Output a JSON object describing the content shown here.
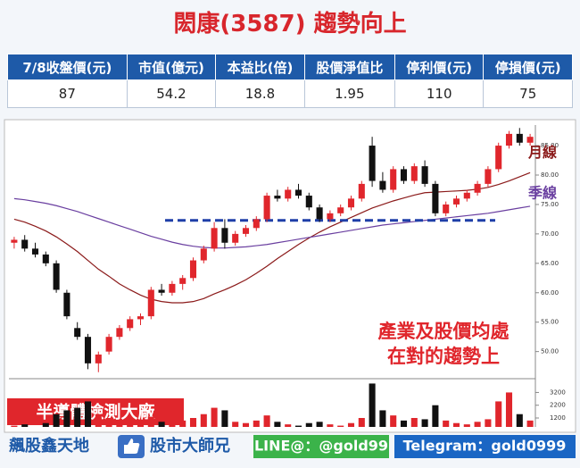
{
  "title": "閎康(3587) 趨勢向上",
  "table": {
    "headers": [
      "7/8收盤價(元)",
      "市值(億元)",
      "本益比(倍)",
      "股價淨值比",
      "停利價(元)",
      "停損價(元)"
    ],
    "rows": [
      [
        87,
        54.2,
        18.8,
        1.95,
        110,
        75
      ]
    ]
  },
  "tag": "半導體檢測大廠",
  "footer": [
    "飆股鑫天地",
    "股市大師兄",
    "LINE@：@gold99",
    "Telegram：gold0999"
  ],
  "chart_data": {
    "type": "candlestick",
    "open": [
      68.5,
      69.0,
      67.5,
      66.5,
      65.0,
      60.0,
      54.0,
      52.5,
      48.0,
      50.0,
      52.5,
      54.0,
      55.5,
      56.0,
      60.5,
      60.0,
      61.5,
      62.5,
      65.5,
      67.5,
      71.0,
      68.5,
      70.0,
      71.0,
      72.5,
      76.5,
      76.0,
      77.5,
      76.5,
      74.5,
      72.5,
      73.5,
      74.5,
      76.0,
      85.0,
      79.0,
      77.5,
      81.0,
      79.0,
      81.5,
      78.5,
      73.5,
      75.0,
      76.0,
      77.0,
      78.5,
      81.0,
      85.0,
      87.0,
      85.5
    ],
    "high": [
      69.5,
      69.8,
      68.5,
      67.0,
      65.5,
      60.5,
      55.0,
      53.0,
      50.0,
      53.0,
      54.5,
      56.0,
      56.5,
      61.0,
      61.5,
      62.0,
      63.0,
      66.0,
      68.0,
      72.0,
      72.5,
      70.5,
      71.5,
      73.0,
      77.0,
      77.5,
      78.0,
      78.5,
      77.0,
      75.0,
      74.0,
      75.0,
      76.5,
      79.0,
      86.5,
      80.5,
      81.5,
      81.5,
      82.0,
      82.5,
      79.0,
      75.5,
      76.5,
      77.5,
      79.0,
      81.5,
      85.5,
      87.5,
      88.0,
      87.0
    ],
    "low": [
      67.5,
      67.0,
      66.0,
      64.5,
      60.0,
      55.5,
      52.0,
      47.0,
      46.5,
      49.5,
      52.0,
      53.5,
      54.5,
      55.5,
      59.5,
      59.5,
      60.5,
      62.0,
      65.0,
      67.0,
      67.5,
      68.0,
      69.5,
      70.5,
      72.0,
      75.5,
      75.5,
      76.0,
      74.0,
      72.0,
      72.0,
      73.0,
      74.0,
      75.5,
      78.0,
      77.0,
      77.0,
      78.5,
      78.5,
      78.0,
      73.0,
      73.0,
      74.5,
      75.5,
      76.5,
      78.0,
      80.5,
      84.5,
      85.0,
      85.0
    ],
    "close": [
      69.0,
      67.5,
      66.5,
      65.0,
      60.5,
      56.0,
      52.5,
      48.0,
      49.5,
      52.5,
      54.0,
      55.5,
      56.0,
      60.5,
      60.0,
      61.5,
      62.5,
      65.5,
      67.5,
      71.0,
      68.5,
      70.0,
      71.0,
      72.5,
      76.5,
      76.0,
      77.5,
      76.5,
      74.5,
      72.5,
      73.5,
      74.5,
      76.0,
      78.5,
      79.0,
      77.5,
      81.0,
      79.0,
      81.5,
      78.5,
      73.5,
      75.0,
      76.0,
      77.0,
      78.5,
      81.0,
      85.0,
      87.0,
      85.5,
      86.5
    ],
    "volume": [
      600,
      700,
      500,
      800,
      1500,
      1800,
      2000,
      2500,
      1500,
      1200,
      1000,
      900,
      700,
      1300,
      900,
      800,
      1000,
      1200,
      1500,
      2000,
      1800,
      900,
      800,
      1000,
      1400,
      900,
      700,
      600,
      800,
      900,
      700,
      600,
      800,
      1200,
      3900,
      1800,
      1400,
      1000,
      1200,
      1100,
      2200,
      1000,
      800,
      700,
      900,
      1100,
      2500,
      3200,
      1500,
      1000
    ],
    "up_color": "#e0262c",
    "down_color": "#111111",
    "series": [
      {
        "name": "月線",
        "color": "#8b1a1a",
        "values": [
          72.5,
          72.0,
          71.3,
          70.5,
          69.5,
          68.3,
          67.0,
          65.5,
          64.0,
          62.8,
          61.5,
          60.5,
          59.6,
          58.9,
          58.5,
          58.3,
          58.3,
          58.5,
          59.0,
          59.8,
          60.5,
          61.3,
          62.2,
          63.3,
          64.5,
          65.8,
          67.0,
          68.2,
          69.3,
          70.3,
          71.2,
          72.0,
          72.8,
          73.6,
          74.4,
          75.0,
          75.6,
          76.1,
          76.6,
          77.0,
          77.1,
          77.2,
          77.3,
          77.4,
          77.6,
          77.9,
          78.4,
          79.0,
          79.7,
          80.4
        ]
      },
      {
        "name": "季線",
        "color": "#6a3fa0",
        "values": [
          76.0,
          75.8,
          75.5,
          75.2,
          74.8,
          74.3,
          73.8,
          73.2,
          72.6,
          72.0,
          71.4,
          70.8,
          70.2,
          69.6,
          69.1,
          68.6,
          68.2,
          67.9,
          67.7,
          67.6,
          67.6,
          67.7,
          67.8,
          68.0,
          68.2,
          68.5,
          68.8,
          69.1,
          69.4,
          69.7,
          70.0,
          70.3,
          70.6,
          70.9,
          71.2,
          71.5,
          71.7,
          71.9,
          72.1,
          72.3,
          72.5,
          72.7,
          72.9,
          73.1,
          73.3,
          73.5,
          73.8,
          74.1,
          74.4,
          74.7
        ]
      }
    ],
    "reference_line": {
      "value": 72.3,
      "color": "#1f3fa8"
    },
    "ylim": [
      46,
      88.5
    ],
    "yticks": [
      {
        "value": 85,
        "label": "85.00"
      },
      {
        "value": 80,
        "label": "80.00"
      },
      {
        "value": 75,
        "label": "75.00"
      },
      {
        "value": 70,
        "label": "70.00"
      },
      {
        "value": 65,
        "label": "65.00"
      },
      {
        "value": 60,
        "label": "60.00"
      },
      {
        "value": 55,
        "label": "55.00"
      },
      {
        "value": 50,
        "label": "50.00"
      }
    ],
    "vlim": [
      500,
      4000
    ],
    "vticks": [
      3200,
      2200,
      1200
    ],
    "annotations": [
      "產業及股價均處",
      "在對的趨勢上"
    ]
  }
}
